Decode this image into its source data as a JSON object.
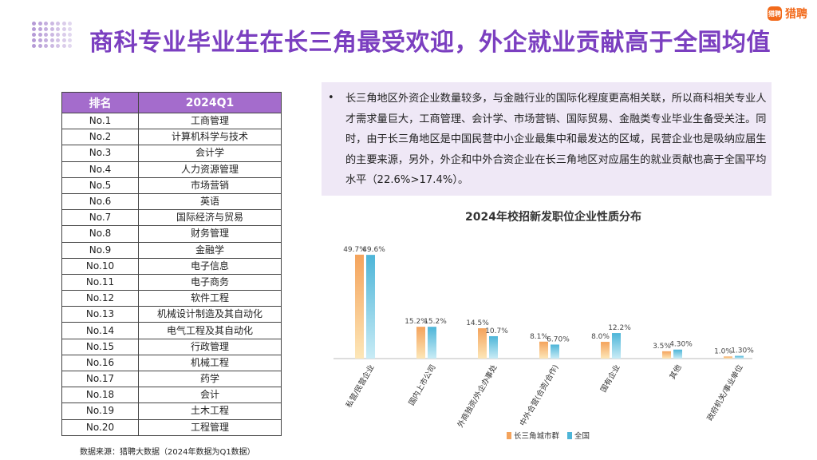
{
  "page": {
    "title": "商科专业毕业生在长三角最受欢迎，外企就业贡献高于全国均值",
    "source": "数据来源：猎聘大数据（2024年数据为Q1数据）"
  },
  "logo": {
    "mark": "猎聘",
    "text": "猎聘"
  },
  "table": {
    "headers": [
      "排名",
      "2024Q1"
    ],
    "rows": [
      [
        "No.1",
        "工商管理"
      ],
      [
        "No.2",
        "计算机科学与技术"
      ],
      [
        "No.3",
        "会计学"
      ],
      [
        "No.4",
        "人力资源管理"
      ],
      [
        "No.5",
        "市场营销"
      ],
      [
        "No.6",
        "英语"
      ],
      [
        "No.7",
        "国际经济与贸易"
      ],
      [
        "No.8",
        "财务管理"
      ],
      [
        "No.9",
        "金融学"
      ],
      [
        "No.10",
        "电子信息"
      ],
      [
        "No.11",
        "电子商务"
      ],
      [
        "No.12",
        "软件工程"
      ],
      [
        "No.13",
        "机械设计制造及其自动化"
      ],
      [
        "No.14",
        "电气工程及其自动化"
      ],
      [
        "No.15",
        "行政管理"
      ],
      [
        "No.16",
        "机械工程"
      ],
      [
        "No.17",
        "药学"
      ],
      [
        "No.18",
        "会计"
      ],
      [
        "No.19",
        "土木工程"
      ],
      [
        "No.20",
        "工程管理"
      ]
    ]
  },
  "note": {
    "bullet": "•",
    "text": "长三角地区外资企业数量较多，与金融行业的国际化程度更高相关联，所以商科相关专业人才需求量巨大，工商管理、会计学、市场营销、国际贸易、金融类专业毕业生备受关注。同时，由于长三角地区是中国民营中小企业最集中和最发达的区域，民营企业也是吸纳应届生的主要来源，另外，外企和中外合资企业在长三角地区对应届生的就业贡献也高于全国平均水平（22.6%>17.4%）。"
  },
  "chart_data": {
    "type": "bar",
    "title": "2024年校招新发职位企业性质分布",
    "categories": [
      "私营/民营企业",
      "国内上市公司",
      "外商独资/外企办事处",
      "中外合营(合资/合作)",
      "国有企业",
      "其他",
      "政府机关/事业单位"
    ],
    "series": [
      {
        "name": "长三角城市群",
        "values": [
          49.7,
          15.2,
          14.5,
          8.1,
          8.0,
          3.5,
          1.0
        ],
        "labels": [
          "49.7%",
          "15.2%",
          "14.5%",
          "8.1%",
          "8.0%",
          "3.5%",
          "1.0%"
        ],
        "color": "#f4a35c"
      },
      {
        "name": "全国",
        "values": [
          49.6,
          15.2,
          10.7,
          6.7,
          12.2,
          4.3,
          1.3
        ],
        "labels": [
          "49.6%",
          "15.2%",
          "10.7%",
          "6.70%",
          "12.2%",
          "4.30%",
          "1.30%"
        ],
        "color": "#4db5d8"
      }
    ],
    "ylim": [
      0,
      55
    ],
    "grid": false,
    "legend": "bottom"
  }
}
